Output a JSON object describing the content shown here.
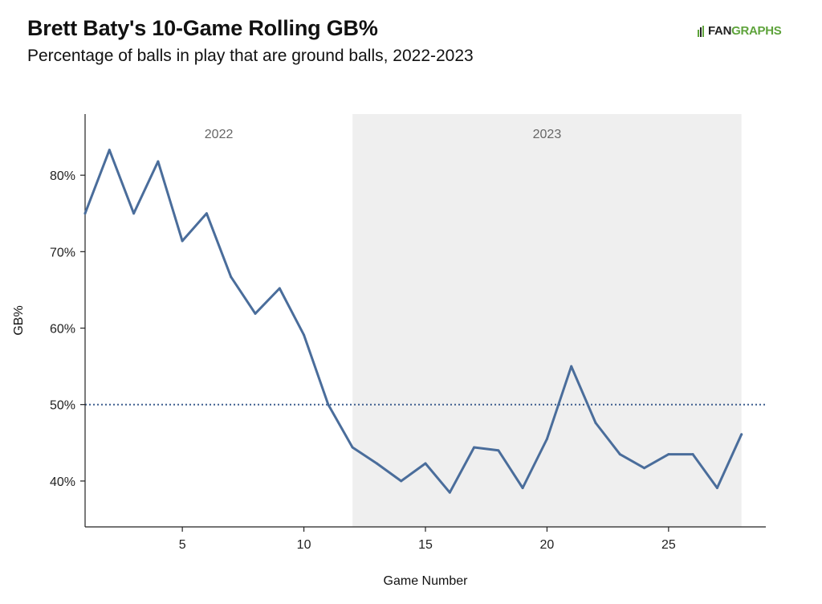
{
  "header": {
    "title": "Brett Baty's 10-Game Rolling GB%",
    "subtitle": "Percentage of balls in play that are ground balls, 2022-2023",
    "logo_fan": "FAN",
    "logo_graphs": "GRAPHS"
  },
  "colors": {
    "line": "#4a6d9b",
    "reference": "#3f5f8f",
    "shade": "#efefef",
    "logo_green": "#5ea33b"
  },
  "chart_data": {
    "type": "line",
    "title": "Brett Baty's 10-Game Rolling GB%",
    "subtitle": "Percentage of balls in play that are ground balls, 2022-2023",
    "xlabel": "Game Number",
    "ylabel": "GB%",
    "xlim": [
      1,
      29
    ],
    "ylim": [
      34,
      88
    ],
    "x_ticks": [
      5,
      10,
      15,
      20,
      25
    ],
    "y_ticks": [
      40,
      50,
      60,
      70,
      80
    ],
    "y_tick_labels": [
      "40%",
      "50%",
      "60%",
      "70%",
      "80%"
    ],
    "reference_line": {
      "y": 50,
      "style": "dotted"
    },
    "periods": [
      {
        "label": "2022",
        "start": 1,
        "end": 12,
        "shaded": false
      },
      {
        "label": "2023",
        "start": 12,
        "end": 28,
        "shaded": true
      }
    ],
    "series": [
      {
        "x": [
          1,
          2,
          3,
          4,
          5,
          6,
          7,
          8,
          9,
          10,
          11,
          12,
          13,
          14,
          15,
          16,
          17,
          18,
          19,
          20,
          21,
          22,
          23,
          24,
          25,
          26,
          27,
          28
        ],
        "values": [
          75.0,
          83.3,
          75.0,
          81.8,
          71.4,
          75.0,
          66.7,
          61.9,
          65.2,
          59.1,
          50.0,
          44.4,
          42.3,
          40.0,
          42.3,
          38.5,
          44.4,
          44.0,
          39.1,
          45.5,
          55.0,
          47.6,
          43.5,
          41.7,
          43.5,
          43.5,
          39.1,
          46.1
        ]
      }
    ],
    "grid": false,
    "legend": "none"
  }
}
